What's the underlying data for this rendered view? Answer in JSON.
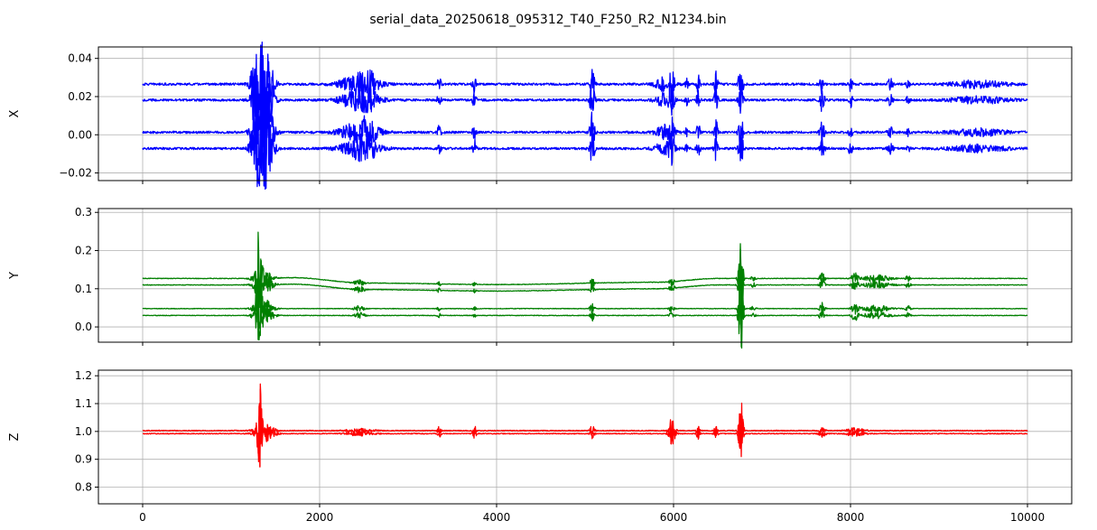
{
  "figure": {
    "title": "serial_data_20250618_095312_T40_F250_R2_N1234.bin"
  },
  "chart_data": [
    {
      "type": "line",
      "ylabel": "X",
      "xlim": [
        -500,
        10500
      ],
      "ylim": [
        -0.024,
        0.046
      ],
      "yticks": [
        -0.02,
        0.0,
        0.02,
        0.04
      ],
      "ytick_labels": [
        "−0.02",
        "0.00",
        "0.02",
        "0.04"
      ],
      "xticks": [
        0,
        2000,
        4000,
        6000,
        8000,
        10000
      ],
      "show_xtick_labels": false,
      "grid": true,
      "color": "#0000ff",
      "n_points": 10000,
      "baselines": [
        0.0265,
        0.0182,
        0.0013,
        -0.0072
      ],
      "noise": 0.0006,
      "events": [
        {
          "x": 1350,
          "amplitude": 0.018,
          "width": 80
        },
        {
          "x": 1280,
          "amplitude": 0.012,
          "width": 60
        },
        {
          "x": 1420,
          "amplitude": 0.01,
          "width": 70
        },
        {
          "x": 2450,
          "amplitude": 0.006,
          "width": 200
        },
        {
          "x": 2550,
          "amplitude": 0.004,
          "width": 80
        },
        {
          "x": 3350,
          "amplitude": 0.004,
          "width": 20
        },
        {
          "x": 3750,
          "amplitude": 0.005,
          "width": 20
        },
        {
          "x": 5080,
          "amplitude": 0.011,
          "width": 25
        },
        {
          "x": 5900,
          "amplitude": 0.004,
          "width": 100
        },
        {
          "x": 5980,
          "amplitude": 0.008,
          "width": 25
        },
        {
          "x": 6150,
          "amplitude": 0.003,
          "width": 20
        },
        {
          "x": 6280,
          "amplitude": 0.005,
          "width": 20
        },
        {
          "x": 6480,
          "amplitude": 0.007,
          "width": 20
        },
        {
          "x": 6760,
          "amplitude": 0.011,
          "width": 25
        },
        {
          "x": 7680,
          "amplitude": 0.007,
          "width": 25
        },
        {
          "x": 8000,
          "amplitude": 0.004,
          "width": 20
        },
        {
          "x": 8450,
          "amplitude": 0.003,
          "width": 30
        },
        {
          "x": 8650,
          "amplitude": 0.002,
          "width": 20
        },
        {
          "x": 9450,
          "amplitude": 0.002,
          "width": 300
        }
      ]
    },
    {
      "type": "line",
      "ylabel": "Y",
      "xlim": [
        -500,
        10500
      ],
      "ylim": [
        -0.04,
        0.31
      ],
      "yticks": [
        0.0,
        0.1,
        0.2,
        0.3
      ],
      "ytick_labels": [
        "0.0",
        "0.1",
        "0.2",
        "0.3"
      ],
      "xticks": [
        0,
        2000,
        4000,
        6000,
        8000,
        10000
      ],
      "show_xtick_labels": false,
      "grid": true,
      "color": "#008000",
      "n_points": 10000,
      "baselines": [
        0.127,
        0.11,
        0.048,
        0.03
      ],
      "drift_series": [
        0,
        1
      ],
      "drift": {
        "x": [
          0,
          1300,
          1700,
          2500,
          4000,
          5800,
          6500,
          8000,
          10000
        ],
        "offset": [
          0,
          0,
          0.002,
          -0.012,
          -0.016,
          -0.01,
          0,
          0,
          0
        ]
      },
      "noise": 0.0008,
      "events": [
        {
          "x": 1310,
          "amplitude": 0.17,
          "width": 25
        },
        {
          "x": 1360,
          "amplitude": 0.03,
          "width": 100
        },
        {
          "x": 2450,
          "amplitude": 0.008,
          "width": 60
        },
        {
          "x": 3350,
          "amplitude": 0.006,
          "width": 20
        },
        {
          "x": 3750,
          "amplitude": 0.005,
          "width": 20
        },
        {
          "x": 5080,
          "amplitude": 0.015,
          "width": 25
        },
        {
          "x": 5980,
          "amplitude": 0.012,
          "width": 30
        },
        {
          "x": 6760,
          "amplitude": 0.11,
          "width": 25
        },
        {
          "x": 6900,
          "amplitude": 0.006,
          "width": 30
        },
        {
          "x": 7680,
          "amplitude": 0.018,
          "width": 30
        },
        {
          "x": 8050,
          "amplitude": 0.015,
          "width": 40
        },
        {
          "x": 8300,
          "amplitude": 0.01,
          "width": 150
        },
        {
          "x": 8650,
          "amplitude": 0.008,
          "width": 30
        }
      ]
    },
    {
      "type": "line",
      "ylabel": "Z",
      "xlim": [
        -500,
        10500
      ],
      "ylim": [
        0.74,
        1.22
      ],
      "yticks": [
        0.8,
        0.9,
        1.0,
        1.1,
        1.2
      ],
      "ytick_labels": [
        "0.8",
        "0.9",
        "1.0",
        "1.1",
        "1.2"
      ],
      "xticks": [
        0,
        2000,
        4000,
        6000,
        8000,
        10000
      ],
      "xtick_labels": [
        "0",
        "2000",
        "4000",
        "6000",
        "8000",
        "10000"
      ],
      "show_xtick_labels": true,
      "grid": true,
      "color": "#ff0000",
      "n_points": 10000,
      "baselines": [
        1.003,
        0.992
      ],
      "noise": 0.0015,
      "events": [
        {
          "x": 1320,
          "amplitude": 0.2,
          "width": 25
        },
        {
          "x": 1380,
          "amplitude": 0.03,
          "width": 100
        },
        {
          "x": 2450,
          "amplitude": 0.008,
          "width": 150
        },
        {
          "x": 3350,
          "amplitude": 0.02,
          "width": 20
        },
        {
          "x": 3750,
          "amplitude": 0.018,
          "width": 20
        },
        {
          "x": 5080,
          "amplitude": 0.02,
          "width": 25
        },
        {
          "x": 5980,
          "amplitude": 0.06,
          "width": 35
        },
        {
          "x": 6280,
          "amplitude": 0.02,
          "width": 20
        },
        {
          "x": 6480,
          "amplitude": 0.02,
          "width": 20
        },
        {
          "x": 6760,
          "amplitude": 0.14,
          "width": 25
        },
        {
          "x": 7680,
          "amplitude": 0.012,
          "width": 40
        },
        {
          "x": 8050,
          "amplitude": 0.01,
          "width": 100
        }
      ]
    }
  ]
}
